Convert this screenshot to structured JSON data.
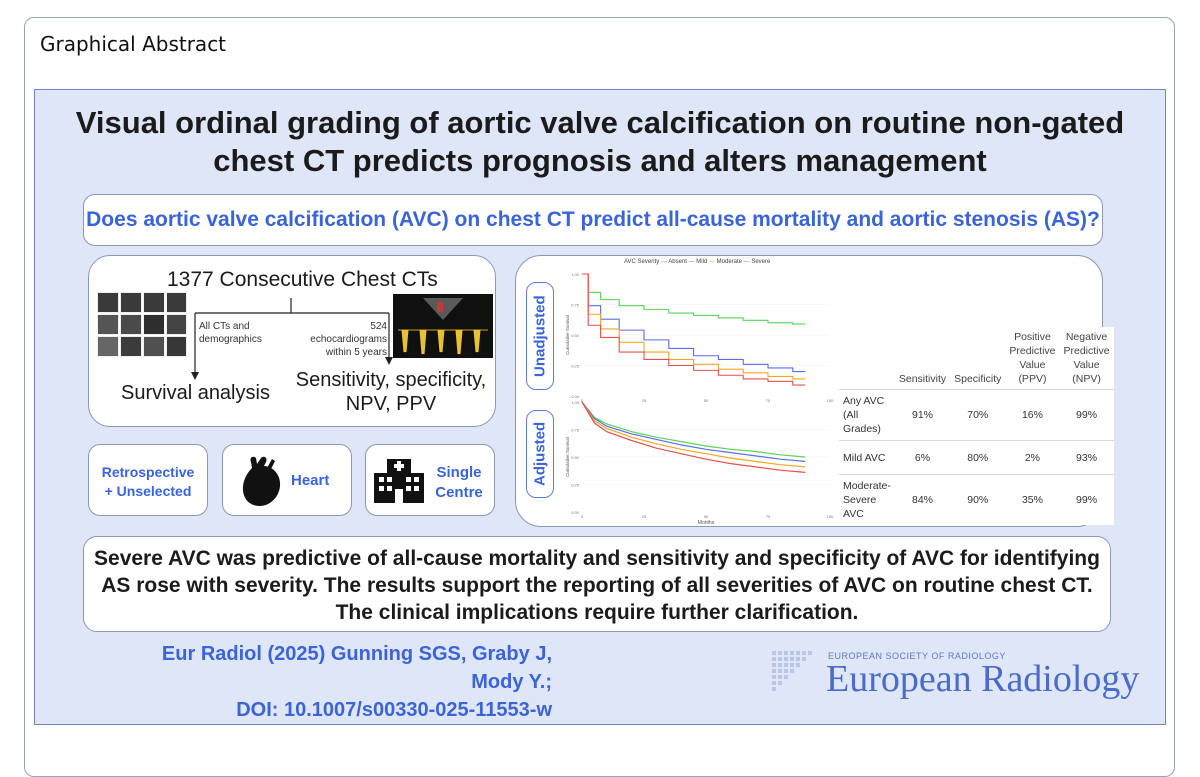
{
  "header": {
    "label": "Graphical Abstract"
  },
  "title": {
    "line1": "Visual ordinal grading of aortic valve calcification on routine non-gated",
    "line2": "chest CT predicts prognosis and alters management"
  },
  "question": "Does aortic valve calcification (AVC) on chest CT predict all-cause mortality and aortic stenosis (AS)?",
  "flow": {
    "top": "1377 Consecutive Chest CTs",
    "left_branch_line1": "All CTs and",
    "left_branch_line2": "demographics",
    "right_branch_line1": "524",
    "right_branch_line2": "echocardiograms",
    "right_branch_line3": "within 5 years",
    "left_outcome": "Survival analysis",
    "right_outcome_line1": "Sensitivity, specificity,",
    "right_outcome_line2": "NPV, PPV"
  },
  "features": {
    "f1_line1": "Retrospective",
    "f1_line2": "+ Unselected",
    "f2": "Heart",
    "f3_line1": "Single",
    "f3_line2": "Centre"
  },
  "plots": {
    "legend_title": "AVC Severity",
    "legend_items": [
      "Absent",
      "Mild",
      "Moderate",
      "Severe"
    ],
    "colors": {
      "Absent": "#5bd15b",
      "Mild": "#5a6ee0",
      "Moderate": "#f5a623",
      "Severe": "#e35050"
    },
    "top_tab": "Unadjusted",
    "bottom_tab": "Adjusted",
    "ylabel": "Cumulative Survival",
    "xlabel": "Months"
  },
  "chart_data": [
    {
      "type": "line",
      "title": "",
      "xlabel": "",
      "ylabel": "Cumulative Survival",
      "xlim": [
        0,
        100
      ],
      "ylim": [
        0,
        1
      ],
      "series": [
        {
          "name": "Absent",
          "x": [
            0,
            5,
            10,
            20,
            30,
            40,
            50,
            60,
            70,
            80,
            90
          ],
          "values": [
            1.0,
            0.85,
            0.79,
            0.74,
            0.71,
            0.68,
            0.66,
            0.64,
            0.62,
            0.6,
            0.59
          ]
        },
        {
          "name": "Mild",
          "x": [
            0,
            5,
            10,
            20,
            30,
            40,
            50,
            60,
            70,
            80,
            90
          ],
          "values": [
            1.0,
            0.74,
            0.63,
            0.54,
            0.46,
            0.39,
            0.33,
            0.3,
            0.26,
            0.23,
            0.2
          ]
        },
        {
          "name": "Moderate",
          "x": [
            0,
            5,
            10,
            20,
            30,
            40,
            50,
            60,
            70,
            80,
            90
          ],
          "values": [
            1.0,
            0.67,
            0.55,
            0.44,
            0.36,
            0.3,
            0.26,
            0.22,
            0.19,
            0.16,
            0.14
          ]
        },
        {
          "name": "Severe",
          "x": [
            0,
            5,
            10,
            20,
            30,
            40,
            50,
            60,
            70,
            80,
            90
          ],
          "values": [
            1.0,
            0.58,
            0.48,
            0.36,
            0.3,
            0.25,
            0.21,
            0.17,
            0.14,
            0.12,
            0.09
          ]
        }
      ]
    },
    {
      "type": "line",
      "title": "",
      "xlabel": "Months",
      "ylabel": "Cumulative Survival",
      "xlim": [
        0,
        100
      ],
      "ylim": [
        0,
        1
      ],
      "series": [
        {
          "name": "Absent",
          "x": [
            0,
            5,
            10,
            20,
            30,
            40,
            50,
            60,
            70,
            80,
            90
          ],
          "values": [
            1.0,
            0.86,
            0.8,
            0.73,
            0.68,
            0.64,
            0.6,
            0.57,
            0.55,
            0.52,
            0.5
          ]
        },
        {
          "name": "Mild",
          "x": [
            0,
            5,
            10,
            20,
            30,
            40,
            50,
            60,
            70,
            80,
            90
          ],
          "values": [
            1.0,
            0.85,
            0.78,
            0.71,
            0.66,
            0.61,
            0.57,
            0.54,
            0.51,
            0.48,
            0.46
          ]
        },
        {
          "name": "Moderate",
          "x": [
            0,
            5,
            10,
            20,
            30,
            40,
            50,
            60,
            70,
            80,
            90
          ],
          "values": [
            1.0,
            0.83,
            0.76,
            0.68,
            0.62,
            0.57,
            0.53,
            0.49,
            0.46,
            0.43,
            0.41
          ]
        },
        {
          "name": "Severe",
          "x": [
            0,
            5,
            10,
            20,
            30,
            40,
            50,
            60,
            70,
            80,
            90
          ],
          "values": [
            1.0,
            0.81,
            0.73,
            0.65,
            0.58,
            0.53,
            0.48,
            0.44,
            0.41,
            0.38,
            0.36
          ]
        }
      ]
    }
  ],
  "table": {
    "headers": [
      "",
      "Sensitivity",
      "Specificity",
      "Positive Predictive Value (PPV)",
      "Negative Predictive Value (NPV)"
    ],
    "rows": [
      {
        "label_line1": "Any AVC",
        "label_line2": "(All Grades)",
        "values": [
          "91%",
          "70%",
          "16%",
          "99%"
        ]
      },
      {
        "label_line1": "Mild AVC",
        "label_line2": "",
        "values": [
          "6%",
          "80%",
          "2%",
          "93%"
        ]
      },
      {
        "label_line1": "Moderate-",
        "label_line2": "Severe AVC",
        "values": [
          "84%",
          "90%",
          "35%",
          "99%"
        ]
      }
    ]
  },
  "conclusion": {
    "line1": "Severe AVC was predictive of all-cause mortality and sensitivity and specificity of AVC for identifying",
    "line2": "AS rose with severity. The results support the reporting of all severities of AVC on routine chest CT.",
    "line3": "The clinical implications require further clarification."
  },
  "citation": {
    "line1": "Eur Radiol (2025) Gunning SGS, Graby J, Mody Y.;",
    "line2": "DOI: 10.1007/s00330-025-11553-w"
  },
  "journal": {
    "society": "EUROPEAN SOCIETY OF RADIOLOGY",
    "name": "European Radiology"
  }
}
